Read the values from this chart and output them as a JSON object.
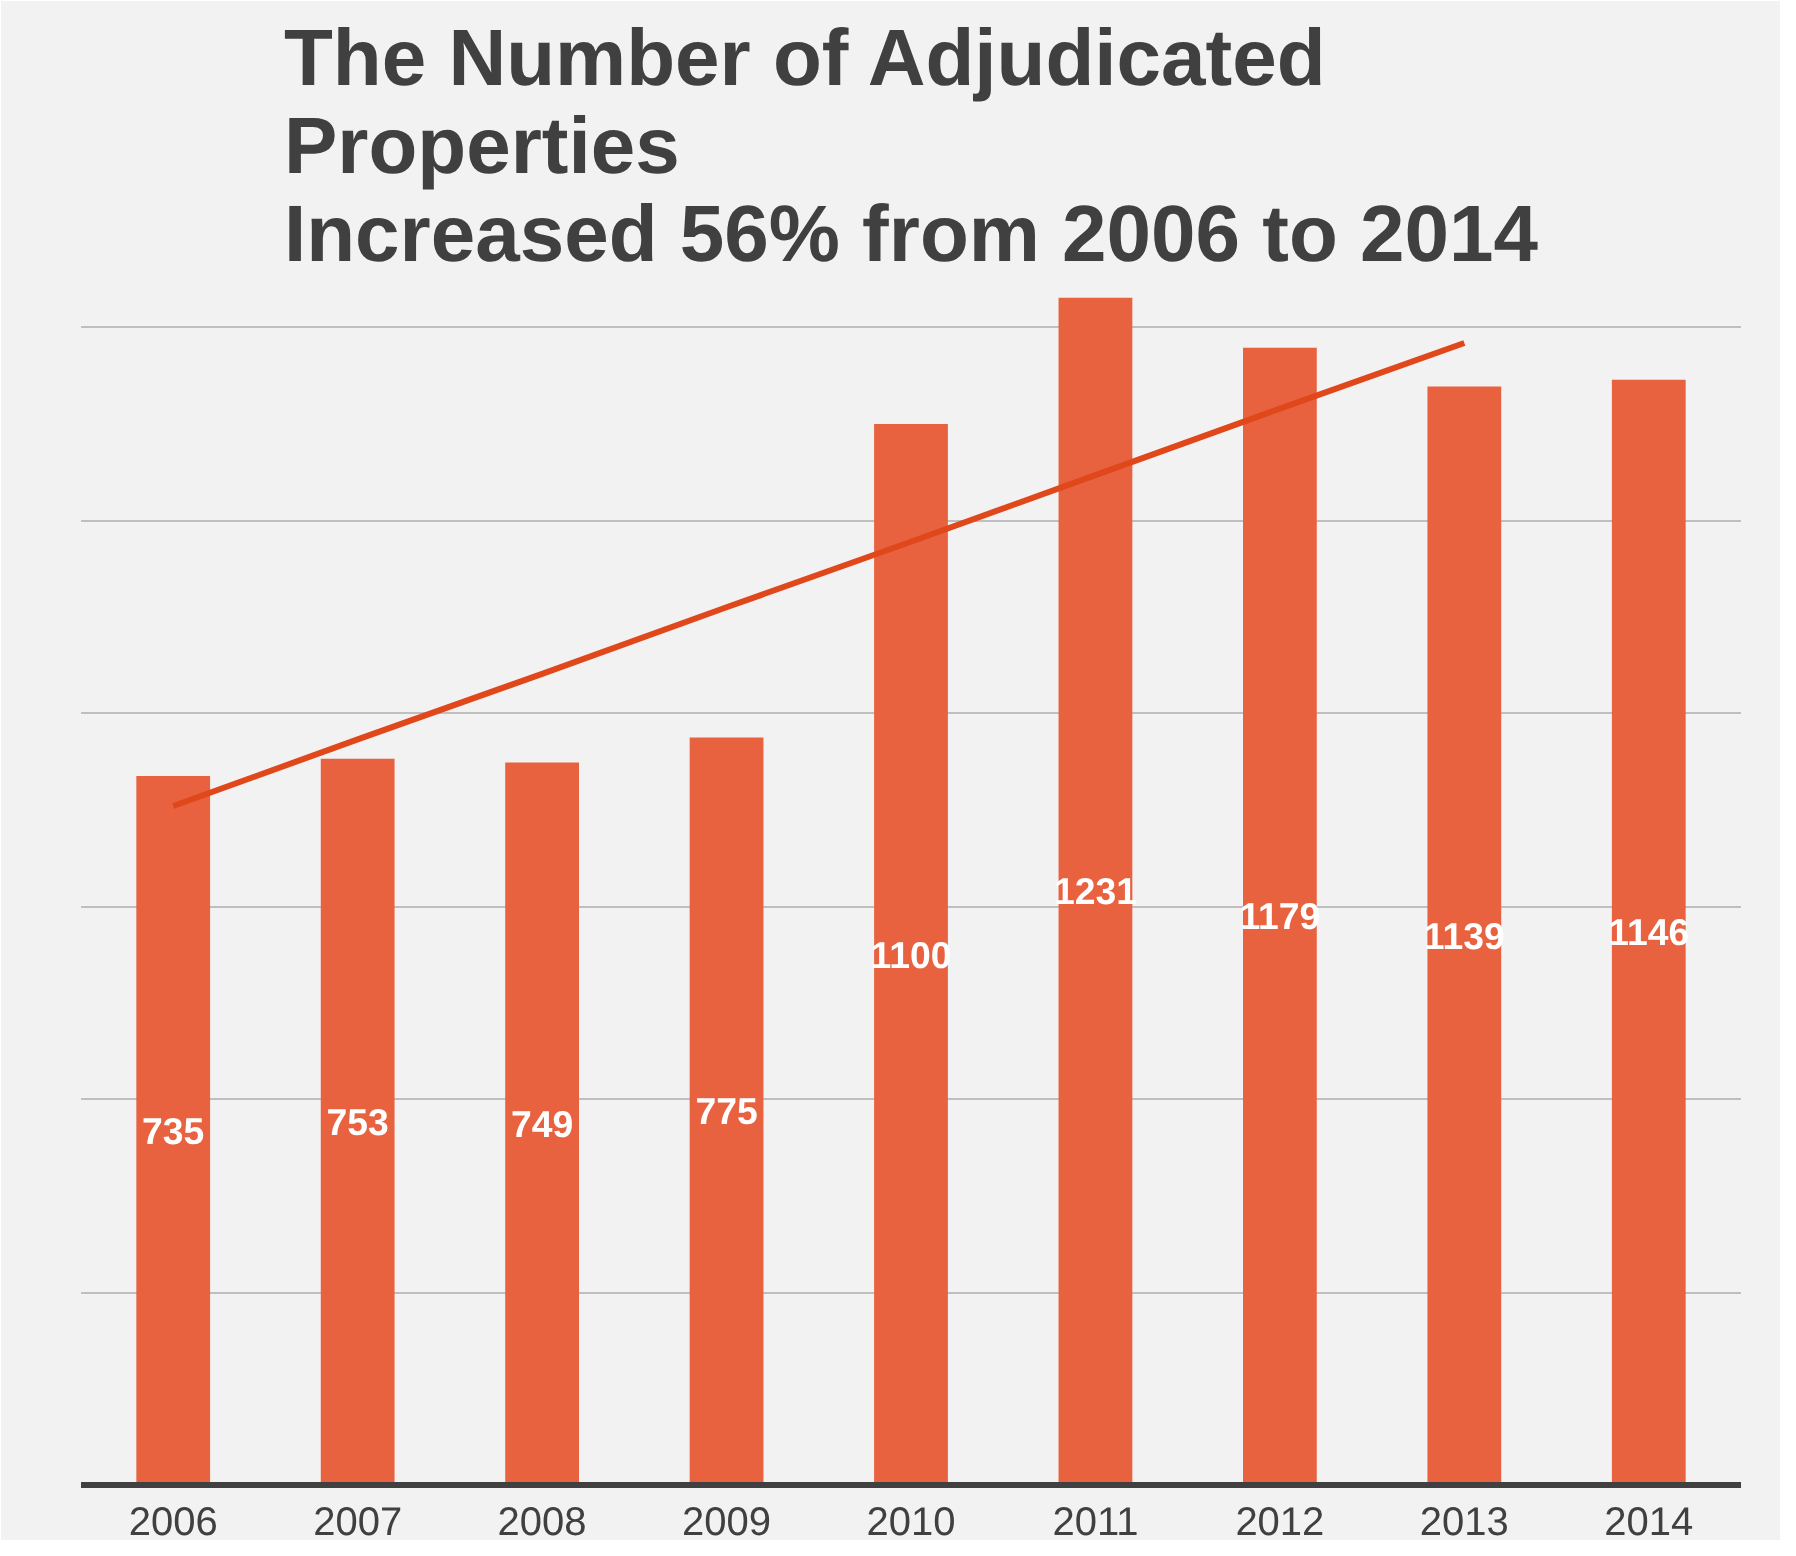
{
  "chart_data": {
    "type": "bar",
    "title": "The Number of Adjudicated\nProperties\nIncreased 56% from 2006 to 2014",
    "categories": [
      "2006",
      "2007",
      "2008",
      "2009",
      "2010",
      "2011",
      "2012",
      "2013",
      "2014"
    ],
    "series": [
      {
        "color": "#e8623f",
        "values": [
          735,
          753,
          749,
          775,
          1100,
          1231,
          1179,
          1139,
          1146
        ],
        "value_labels": [
          "735",
          "753",
          "749",
          "775",
          "1100",
          "1231",
          "1179",
          "1139",
          "1146"
        ]
      },
      {
        "type": "line",
        "color": "#e0481c",
        "values": [
          704,
          773,
          841,
          910,
          978,
          1047,
          1116,
          1184,
          null
        ]
      }
    ],
    "ylim": [
      0,
      1240
    ],
    "yticks": [
      {
        "value": 0,
        "label": null
      },
      {
        "value": 200,
        "label": null
      },
      {
        "value": 400,
        "label": null
      },
      {
        "value": 600,
        "label": null
      },
      {
        "value": 800,
        "label": null
      },
      {
        "value": 1000,
        "label": null
      },
      {
        "value": 1200,
        "label": null
      }
    ],
    "tick_labels": "x",
    "grid": "y"
  }
}
